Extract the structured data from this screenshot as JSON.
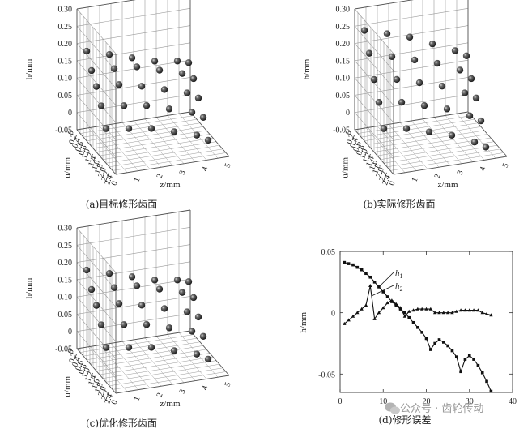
{
  "watermark": "公众号 · 齿轮传动",
  "icons": {
    "watermark": "wechat-icon"
  },
  "chart_data": [
    {
      "type": "scatter",
      "subtype": "3d-scatter",
      "panel": "a",
      "caption": "(a)目标修形齿面",
      "xlabel": "u/mm",
      "ylabel": "z/mm",
      "zlabel": "h/mm",
      "xticks": [
        "0",
        "0.2",
        "0.4",
        "0.6",
        "0.8",
        "1.0",
        "1.2",
        "1.4",
        "1.6",
        "1.8",
        "2.0",
        "2.2",
        "2.4"
      ],
      "yticks": [
        "0",
        "1",
        "2",
        "3",
        "4",
        "5"
      ],
      "zticks": [
        "0.30",
        "0.25",
        "0.20",
        "0.15",
        "0.10",
        "0.05",
        "0",
        "-0.05"
      ],
      "xlim": [
        0,
        2.4
      ],
      "ylim": [
        0,
        5
      ],
      "zlim": [
        -0.05,
        0.3
      ],
      "grid": true,
      "series": [
        {
          "z": [
            0,
            1,
            2,
            3,
            4,
            4.5
          ],
          "x": [
            0.6,
            0.6,
            0.6,
            0.6,
            0.6,
            0.6
          ],
          "h": [
            0.21,
            0.19,
            0.17,
            0.15,
            0.14,
            0.13
          ]
        },
        {
          "z": [
            0,
            1,
            2,
            3,
            4,
            4.5
          ],
          "x": [
            0.9,
            0.9,
            0.9,
            0.9,
            0.9,
            0.9
          ],
          "h": [
            0.17,
            0.165,
            0.16,
            0.14,
            0.12,
            0.1
          ]
        },
        {
          "z": [
            0,
            1,
            2,
            3,
            4,
            4.5
          ],
          "x": [
            1.2,
            1.2,
            1.2,
            1.2,
            1.2,
            1.2
          ],
          "h": [
            0.14,
            0.135,
            0.12,
            0.1,
            0.08,
            0.06
          ]
        },
        {
          "z": [
            0,
            1,
            2,
            3,
            4,
            4.5
          ],
          "x": [
            1.5,
            1.5,
            1.5,
            1.5,
            1.5,
            1.5
          ],
          "h": [
            0.1,
            0.09,
            0.08,
            0.06,
            0.04,
            0.02
          ]
        },
        {
          "z": [
            0,
            1,
            2,
            3,
            4,
            4.5
          ],
          "x": [
            1.8,
            1.8,
            1.8,
            1.8,
            1.8,
            1.8
          ],
          "h": [
            0.05,
            0.04,
            0.03,
            0.01,
            -0.01,
            -0.03
          ]
        }
      ]
    },
    {
      "type": "scatter",
      "subtype": "3d-scatter",
      "panel": "b",
      "caption": "(b)实际修形齿面",
      "xlabel": "u/mm",
      "ylabel": "z/mm",
      "zlabel": "h/mm",
      "xticks": [
        "0",
        "0.2",
        "0.4",
        "0.6",
        "0.8",
        "1.0",
        "1.2",
        "1.4",
        "1.6",
        "1.8",
        "2.0",
        "2.2",
        "2.4"
      ],
      "yticks": [
        "0",
        "1",
        "2",
        "3",
        "4",
        "5"
      ],
      "zticks": [
        "0.30",
        "0.25",
        "0.20",
        "0.15",
        "0.10",
        "0.05",
        "0",
        "-0.05"
      ],
      "xlim": [
        0,
        2.4
      ],
      "ylim": [
        0,
        5
      ],
      "zlim": [
        -0.05,
        0.3
      ],
      "grid": true,
      "series": [
        {
          "z": [
            0,
            1,
            2,
            3,
            4,
            4.5
          ],
          "x": [
            0.6,
            0.6,
            0.6,
            0.6,
            0.6,
            0.6
          ],
          "h": [
            0.27,
            0.25,
            0.23,
            0.2,
            0.17,
            0.15
          ]
        },
        {
          "z": [
            0,
            1,
            2,
            3,
            4,
            4.5
          ],
          "x": [
            0.9,
            0.9,
            0.9,
            0.9,
            0.9,
            0.9
          ],
          "h": [
            0.22,
            0.2,
            0.18,
            0.16,
            0.13,
            0.1
          ]
        },
        {
          "z": [
            0,
            1,
            2,
            3,
            4,
            4.5
          ],
          "x": [
            1.2,
            1.2,
            1.2,
            1.2,
            1.2,
            1.2
          ],
          "h": [
            0.16,
            0.15,
            0.13,
            0.11,
            0.08,
            0.06
          ]
        },
        {
          "z": [
            0,
            1,
            2,
            3,
            4,
            4.5
          ],
          "x": [
            1.5,
            1.5,
            1.5,
            1.5,
            1.5,
            1.5
          ],
          "h": [
            0.11,
            0.1,
            0.08,
            0.06,
            0.03,
            0.01
          ]
        },
        {
          "z": [
            0,
            1,
            2,
            3,
            4,
            4.5
          ],
          "x": [
            1.8,
            1.8,
            1.8,
            1.8,
            1.8,
            1.8
          ],
          "h": [
            0.05,
            0.04,
            0.02,
            0.0,
            -0.03,
            -0.05
          ]
        }
      ]
    },
    {
      "type": "scatter",
      "subtype": "3d-scatter",
      "panel": "c",
      "caption": "(c)优化修形齿面",
      "xlabel": "u/mm",
      "ylabel": "z/mm",
      "zlabel": "h/mm",
      "xticks": [
        "0",
        "0.2",
        "0.4",
        "0.6",
        "0.8",
        "1.0",
        "1.2",
        "1.4",
        "1.6",
        "1.8",
        "2.0",
        "2.2",
        "2.4"
      ],
      "yticks": [
        "0",
        "1",
        "2",
        "3",
        "4",
        "5"
      ],
      "zticks": [
        "0.30",
        "0.25",
        "0.20",
        "0.15",
        "0.10",
        "0.05",
        "0",
        "-0.05"
      ],
      "xlim": [
        0,
        2.4
      ],
      "ylim": [
        0,
        5
      ],
      "zlim": [
        -0.05,
        0.3
      ],
      "grid": true,
      "series": [
        {
          "z": [
            0,
            1,
            2,
            3,
            4,
            4.5
          ],
          "x": [
            0.6,
            0.6,
            0.6,
            0.6,
            0.6,
            0.6
          ],
          "h": [
            0.21,
            0.19,
            0.17,
            0.15,
            0.14,
            0.13
          ]
        },
        {
          "z": [
            0,
            1,
            2,
            3,
            4,
            4.5
          ],
          "x": [
            0.9,
            0.9,
            0.9,
            0.9,
            0.9,
            0.9
          ],
          "h": [
            0.17,
            0.165,
            0.16,
            0.14,
            0.12,
            0.1
          ]
        },
        {
          "z": [
            0,
            1,
            2,
            3,
            4,
            4.5
          ],
          "x": [
            1.2,
            1.2,
            1.2,
            1.2,
            1.2,
            1.2
          ],
          "h": [
            0.14,
            0.135,
            0.12,
            0.1,
            0.08,
            0.06
          ]
        },
        {
          "z": [
            0,
            1,
            2,
            3,
            4,
            4.5
          ],
          "x": [
            1.5,
            1.5,
            1.5,
            1.5,
            1.5,
            1.5
          ],
          "h": [
            0.1,
            0.09,
            0.08,
            0.06,
            0.04,
            0.02
          ]
        },
        {
          "z": [
            0,
            1,
            2,
            3,
            4,
            4.5
          ],
          "x": [
            1.8,
            1.8,
            1.8,
            1.8,
            1.8,
            1.8
          ],
          "h": [
            0.05,
            0.04,
            0.03,
            0.01,
            -0.01,
            -0.03
          ]
        }
      ]
    },
    {
      "type": "line",
      "panel": "d",
      "caption": "(d)修形误差",
      "xlabel": "",
      "ylabel": "h/mm",
      "xlim": [
        0,
        40
      ],
      "ylim": [
        -0.065,
        0.05
      ],
      "xticks": [
        0,
        10,
        20,
        30,
        40
      ],
      "yticks": [
        0.05,
        0,
        -0.05
      ],
      "ytick_labels": [
        "0.05",
        "0",
        "-0.05"
      ],
      "grid": false,
      "series": [
        {
          "name": "h1",
          "marker": "square",
          "x": [
            1,
            2,
            3,
            4,
            5,
            6,
            7,
            8,
            9,
            10,
            11,
            12,
            13,
            14,
            15,
            16,
            17,
            18,
            19,
            20,
            21,
            22,
            23,
            24,
            25,
            26,
            27,
            28,
            29,
            30,
            31,
            32,
            33,
            34,
            35
          ],
          "y": [
            0.041,
            0.04,
            0.039,
            0.037,
            0.035,
            0.032,
            0.029,
            0.025,
            0.021,
            0.017,
            0.013,
            0.009,
            0.006,
            0.003,
            0.0,
            -0.004,
            -0.008,
            -0.012,
            -0.016,
            -0.021,
            -0.03,
            -0.025,
            -0.022,
            -0.024,
            -0.027,
            -0.031,
            -0.036,
            -0.048,
            -0.038,
            -0.035,
            -0.038,
            -0.043,
            -0.049,
            -0.056,
            -0.064
          ]
        },
        {
          "name": "h2",
          "marker": "triangle",
          "x": [
            1,
            2,
            3,
            4,
            5,
            6,
            7,
            8,
            9,
            10,
            11,
            12,
            13,
            14,
            15,
            16,
            17,
            18,
            19,
            20,
            21,
            22,
            23,
            24,
            25,
            26,
            27,
            28,
            29,
            30,
            31,
            32,
            33,
            34,
            35
          ],
          "y": [
            -0.009,
            -0.006,
            -0.003,
            0.0,
            0.003,
            0.006,
            0.022,
            -0.005,
            0.0,
            0.004,
            0.008,
            0.01,
            0.007,
            0.004,
            -0.003,
            0.001,
            0.002,
            0.003,
            0.003,
            0.003,
            0.003,
            0.0,
            0.0,
            0.0,
            0.0,
            0.0,
            0.001,
            0.002,
            0.002,
            0.002,
            0.002,
            0.002,
            0.0,
            -0.001,
            -0.002
          ]
        }
      ]
    }
  ]
}
